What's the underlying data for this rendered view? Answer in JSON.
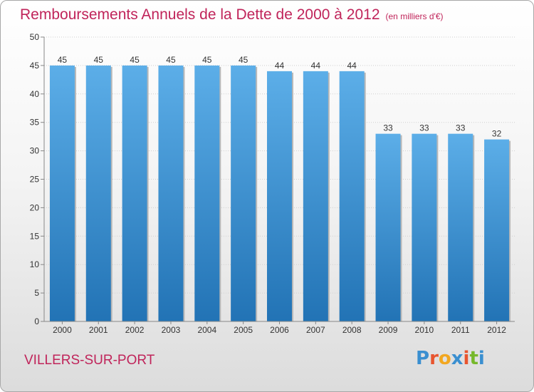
{
  "title": "Remboursements Annuels de la Dette de 2000 à 2012",
  "unit_note": "(en milliers d'€)",
  "city": "VILLERS-SUR-PORT",
  "logo": {
    "text": "Proxiti",
    "letters": [
      "P",
      "r",
      "o",
      "x",
      "i",
      "t",
      "i"
    ],
    "colors": [
      "#3a8fd0",
      "#e8552f",
      "#f2a720",
      "#3a8fd0",
      "#e8552f",
      "#76b82a",
      "#3a8fd0"
    ]
  },
  "colors": {
    "bar_top": "#5caee8",
    "bar_bottom": "#2273b5",
    "title": "#c0245a"
  },
  "chart_data": {
    "type": "bar",
    "title": "Remboursements Annuels de la Dette de 2000 à 2012",
    "xlabel": "",
    "ylabel": "",
    "categories": [
      "2000",
      "2001",
      "2002",
      "2003",
      "2004",
      "2005",
      "2006",
      "2007",
      "2008",
      "2009",
      "2010",
      "2011",
      "2012"
    ],
    "values": [
      45,
      45,
      45,
      45,
      45,
      45,
      44,
      44,
      44,
      33,
      33,
      33,
      32
    ],
    "ylim": [
      0,
      50
    ],
    "yticks": [
      0,
      5,
      10,
      15,
      20,
      25,
      30,
      35,
      40,
      45,
      50
    ],
    "grid": true
  }
}
